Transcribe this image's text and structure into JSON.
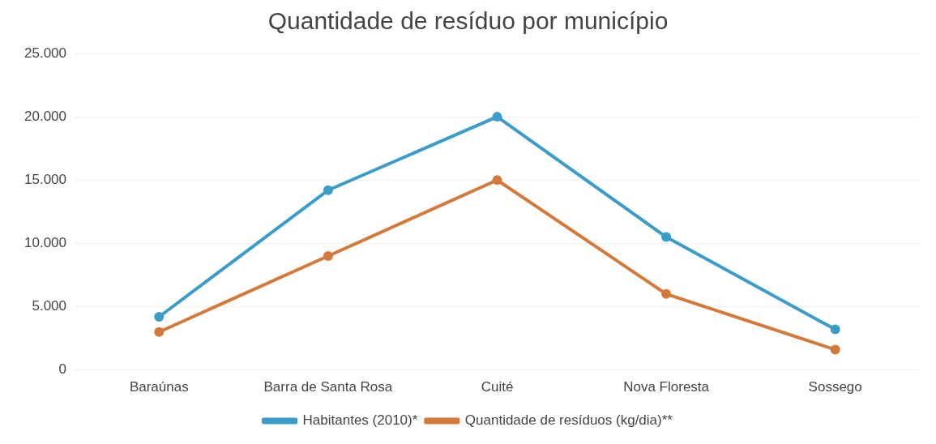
{
  "chart_data": {
    "type": "line",
    "title": "Quantidade de resíduo por município",
    "categories": [
      "Baraúnas",
      "Barra de Santa Rosa",
      "Cuité",
      "Nova Floresta",
      "Sossego"
    ],
    "series": [
      {
        "name": "Habitantes (2010)*",
        "color": "#3a9cc8",
        "values": [
          4200,
          14200,
          20000,
          10500,
          3200
        ]
      },
      {
        "name": "Quantidade de resíduos (kg/dia)**",
        "color": "#d4793a",
        "values": [
          3000,
          9000,
          15000,
          6000,
          1600
        ]
      }
    ],
    "ylim": [
      0,
      25000
    ],
    "yticks": [
      {
        "value": 0,
        "label": "0"
      },
      {
        "value": 5000,
        "label": "5.000"
      },
      {
        "value": 10000,
        "label": "10.000"
      },
      {
        "value": 15000,
        "label": "15.000"
      },
      {
        "value": 20000,
        "label": "20.000"
      },
      {
        "value": 25000,
        "label": "25.000"
      }
    ],
    "grid": "y",
    "legend": "bottom",
    "marker": "circle",
    "line_style": "solid"
  }
}
